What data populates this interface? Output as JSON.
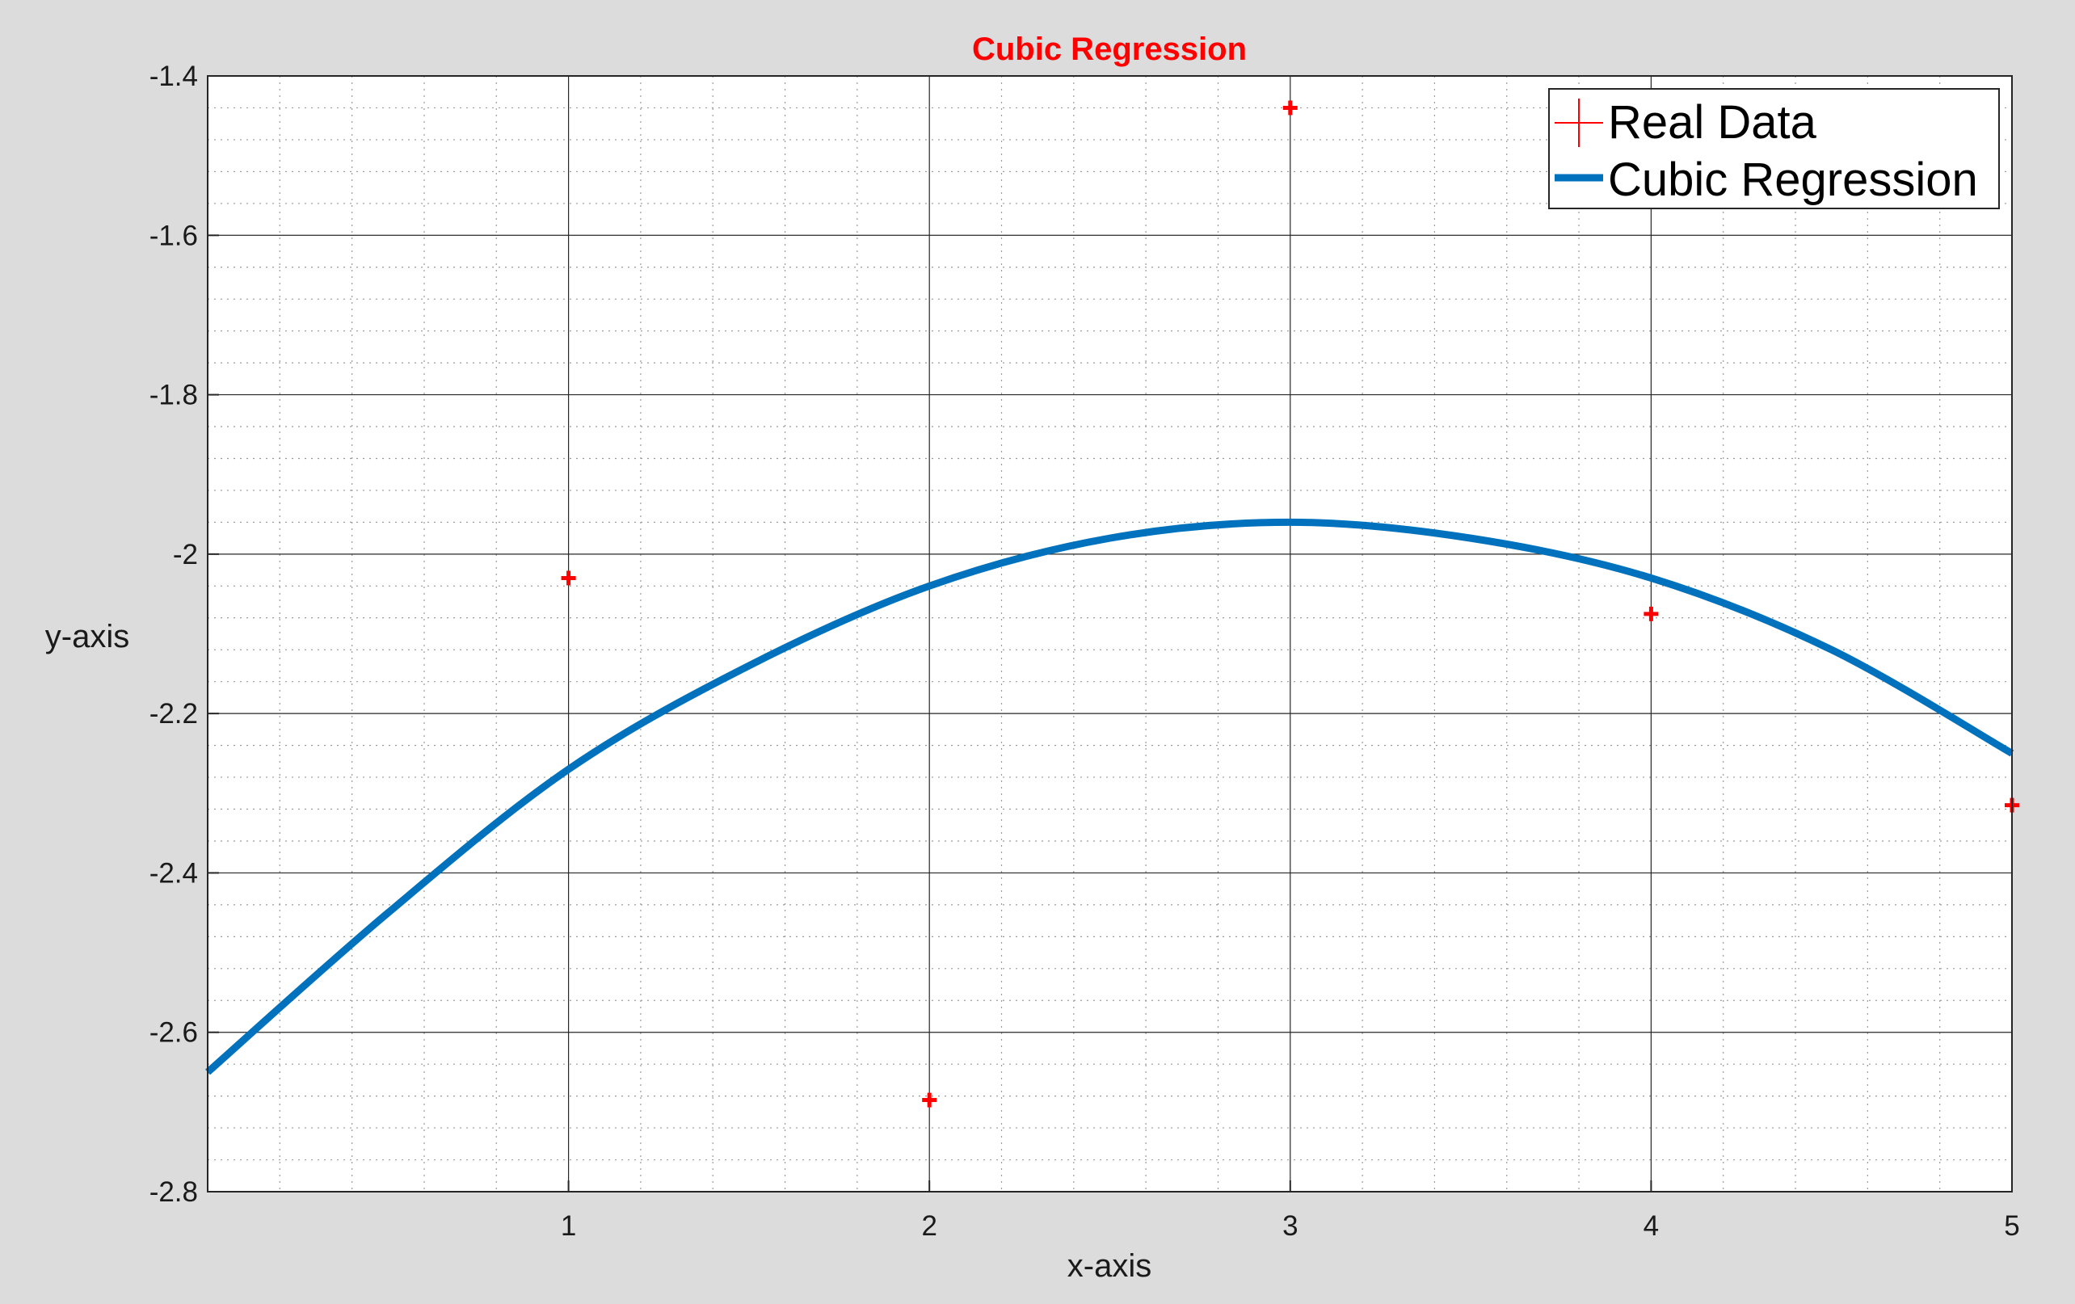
{
  "colors": {
    "figure_background": "#dcdcdc",
    "axes_background": "#ffffff",
    "title": "#ff0000",
    "data_points": "#ff0000",
    "regression_line": "#0072bd",
    "major_grid": "#262626",
    "minor_grid": "#9a9a9a"
  },
  "chart_data": {
    "type": "scatter",
    "title": "Cubic Regression",
    "xlabel": "x-axis",
    "ylabel": "y-axis",
    "xlim": [
      0,
      5
    ],
    "ylim": [
      -2.8,
      -1.4
    ],
    "xticks": [
      1,
      2,
      3,
      4,
      5
    ],
    "xtick_labels": [
      "1",
      "2",
      "3",
      "4",
      "5"
    ],
    "yticks": [
      -2.8,
      -2.6,
      -2.4,
      -2.2,
      -2,
      -1.8,
      -1.6,
      -1.4
    ],
    "ytick_labels": [
      "-2.8",
      "-2.6",
      "-2.4",
      "-2.2",
      "-2",
      "-1.8",
      "-1.6",
      "-1.4"
    ],
    "grid": "major and minor",
    "legend_position": "top-right",
    "series": [
      {
        "name": "Real Data",
        "kind": "scatter",
        "marker": "plus",
        "x": [
          1,
          2,
          3,
          4,
          5
        ],
        "y": [
          -2.03,
          -2.685,
          -1.44,
          -2.075,
          -2.315
        ]
      },
      {
        "name": "Cubic Regression",
        "kind": "line",
        "x": [
          0,
          0.5,
          1,
          1.5,
          2,
          2.5,
          3,
          3.5,
          4,
          4.5,
          5
        ],
        "y": [
          -2.65,
          -2.45,
          -2.27,
          -2.14,
          -2.04,
          -1.98,
          -1.96,
          -1.98,
          -2.03,
          -2.12,
          -2.25
        ]
      }
    ]
  }
}
